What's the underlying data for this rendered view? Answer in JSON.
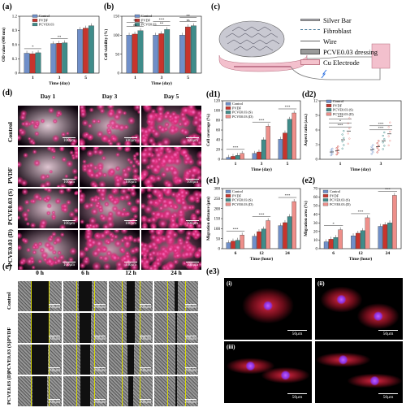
{
  "panels": {
    "a": "(a)",
    "b": "(b)",
    "c": "(c)",
    "d": "(d)",
    "e": "(e)",
    "d1": "(d1)",
    "d2": "(d2)",
    "e1": "(e1)",
    "e2": "(e2)",
    "e3": "(e3)"
  },
  "colors": {
    "control": "#6f8fc9",
    "pvdf": "#c8342c",
    "pcve_s": "#3f8c8a",
    "pcve_d": "#ee8f8a"
  },
  "schematic": {
    "legend": [
      "Silver Bar",
      "Fibroblast",
      "Wire",
      "PCVE0.03 dressing",
      "Cu Electrode"
    ],
    "icons": [
      "silver-bar-icon",
      "fibroblast-icon",
      "wire-icon",
      "dressing-icon",
      "electrode-icon"
    ]
  },
  "grid_d": {
    "cols": [
      "Day 1",
      "Day 3",
      "Day 5"
    ],
    "rows": [
      "Control",
      "PVDF",
      "PCVE0.03 (S)",
      "PCVE0.03 (D)"
    ],
    "scale": "100μm"
  },
  "grid_e": {
    "cols": [
      "0 h",
      "6 h",
      "12 h",
      "24 h"
    ],
    "rows": [
      "Control",
      "PVDF",
      "PCVE0.03 (S)",
      "PCVE0.03 (D)"
    ],
    "scale": "200μm"
  },
  "grid_e3": {
    "tags": [
      "(i)",
      "(ii)",
      "(iii)",
      ""
    ],
    "scale": "50μm"
  },
  "chart_data": [
    {
      "id": "a",
      "type": "bar",
      "xlabel": "Time (day)",
      "ylabel": "OD value (490 nm)",
      "categories": [
        "1",
        "3",
        "5"
      ],
      "ylim": [
        0.0,
        1.2
      ],
      "yticks": [
        0.0,
        0.3,
        0.6,
        0.9,
        1.2
      ],
      "series": [
        {
          "name": "Control",
          "values": [
            0.42,
            0.62,
            0.92
          ]
        },
        {
          "name": "PVDF",
          "values": [
            0.41,
            0.63,
            0.95
          ]
        },
        {
          "name": "PCVE0.03",
          "values": [
            0.43,
            0.64,
            1.0
          ]
        }
      ],
      "annotations": [
        "*",
        "**"
      ]
    },
    {
      "id": "b",
      "type": "bar",
      "xlabel": "Time (day)",
      "ylabel": "Cell viability (%)",
      "categories": [
        "1",
        "3",
        "5"
      ],
      "ylim": [
        0,
        150
      ],
      "yticks": [
        0,
        50,
        100,
        150
      ],
      "series": [
        {
          "name": "Control",
          "values": [
            100,
            100,
            100
          ]
        },
        {
          "name": "PVDF",
          "values": [
            103,
            104,
            122
          ]
        },
        {
          "name": "PCVE0.03",
          "values": [
            112,
            115,
            125
          ]
        }
      ],
      "annotations": [
        "ns",
        "**",
        "ns",
        "**",
        "***",
        "**"
      ]
    },
    {
      "id": "d1",
      "type": "bar",
      "xlabel": "Time (day)",
      "ylabel": "Cell coverage (%)",
      "categories": [
        "1",
        "3",
        "5"
      ],
      "ylim": [
        0,
        120
      ],
      "yticks": [
        0,
        20,
        40,
        60,
        80,
        100,
        120
      ],
      "series": [
        {
          "name": "Control",
          "values": [
            4,
            12,
            41
          ]
        },
        {
          "name": "PVDF",
          "values": [
            6,
            15,
            54
          ]
        },
        {
          "name": "PCVE0.03 (S)",
          "values": [
            8,
            40,
            82
          ]
        },
        {
          "name": "PCVE0.03 (D)",
          "values": [
            12,
            68,
            95
          ]
        }
      ],
      "annotations": [
        "***",
        "***",
        "***"
      ]
    },
    {
      "id": "d2",
      "type": "scatter",
      "xlabel": "Time (day)",
      "ylabel": "Aspect ratio (a.u.)",
      "categories": [
        "1",
        "3"
      ],
      "ylim": [
        0,
        12
      ],
      "yticks": [
        0,
        3,
        6,
        9,
        12
      ],
      "series": [
        {
          "name": "Control",
          "values": [
            1.5,
            2.0
          ]
        },
        {
          "name": "PVDF",
          "values": [
            1.8,
            2.6
          ]
        },
        {
          "name": "PCVE0.03 (S)",
          "values": [
            4.0,
            3.8
          ]
        },
        {
          "name": "PCVE0.03 (D)",
          "values": [
            5.8,
            5.2
          ]
        }
      ],
      "annotations": [
        "***",
        "***",
        "*",
        "***",
        "***"
      ]
    },
    {
      "id": "e1",
      "type": "bar",
      "xlabel": "Time (hour)",
      "ylabel": "Migration distance (μm)",
      "categories": [
        "6",
        "12",
        "24"
      ],
      "ylim": [
        0,
        300
      ],
      "yticks": [
        0,
        50,
        100,
        150,
        200,
        250,
        300
      ],
      "series": [
        {
          "name": "Control",
          "values": [
            30,
            62,
            115
          ]
        },
        {
          "name": "PVDF",
          "values": [
            38,
            85,
            130
          ]
        },
        {
          "name": "PCVE0.03 (S)",
          "values": [
            42,
            98,
            160
          ]
        },
        {
          "name": "PCVE0.03 (D)",
          "values": [
            68,
            140,
            235
          ]
        }
      ],
      "annotations": [
        "***",
        "***",
        "***"
      ]
    },
    {
      "id": "e2",
      "type": "bar",
      "xlabel": "Time (hour)",
      "ylabel": "Migration area (%)",
      "categories": [
        "6",
        "12",
        "24"
      ],
      "ylim": [
        0,
        70
      ],
      "yticks": [
        0,
        10,
        20,
        30,
        40,
        50,
        60,
        70
      ],
      "series": [
        {
          "name": "Control",
          "values": [
            8,
            15,
            26
          ]
        },
        {
          "name": "PVDF",
          "values": [
            11,
            18,
            28
          ]
        },
        {
          "name": "PCVE0.03 (S)",
          "values": [
            13,
            21,
            30
          ]
        },
        {
          "name": "PCVE0.03 (D)",
          "values": [
            22,
            36,
            62
          ]
        }
      ],
      "annotations": [
        "*",
        "***",
        "***"
      ]
    }
  ]
}
